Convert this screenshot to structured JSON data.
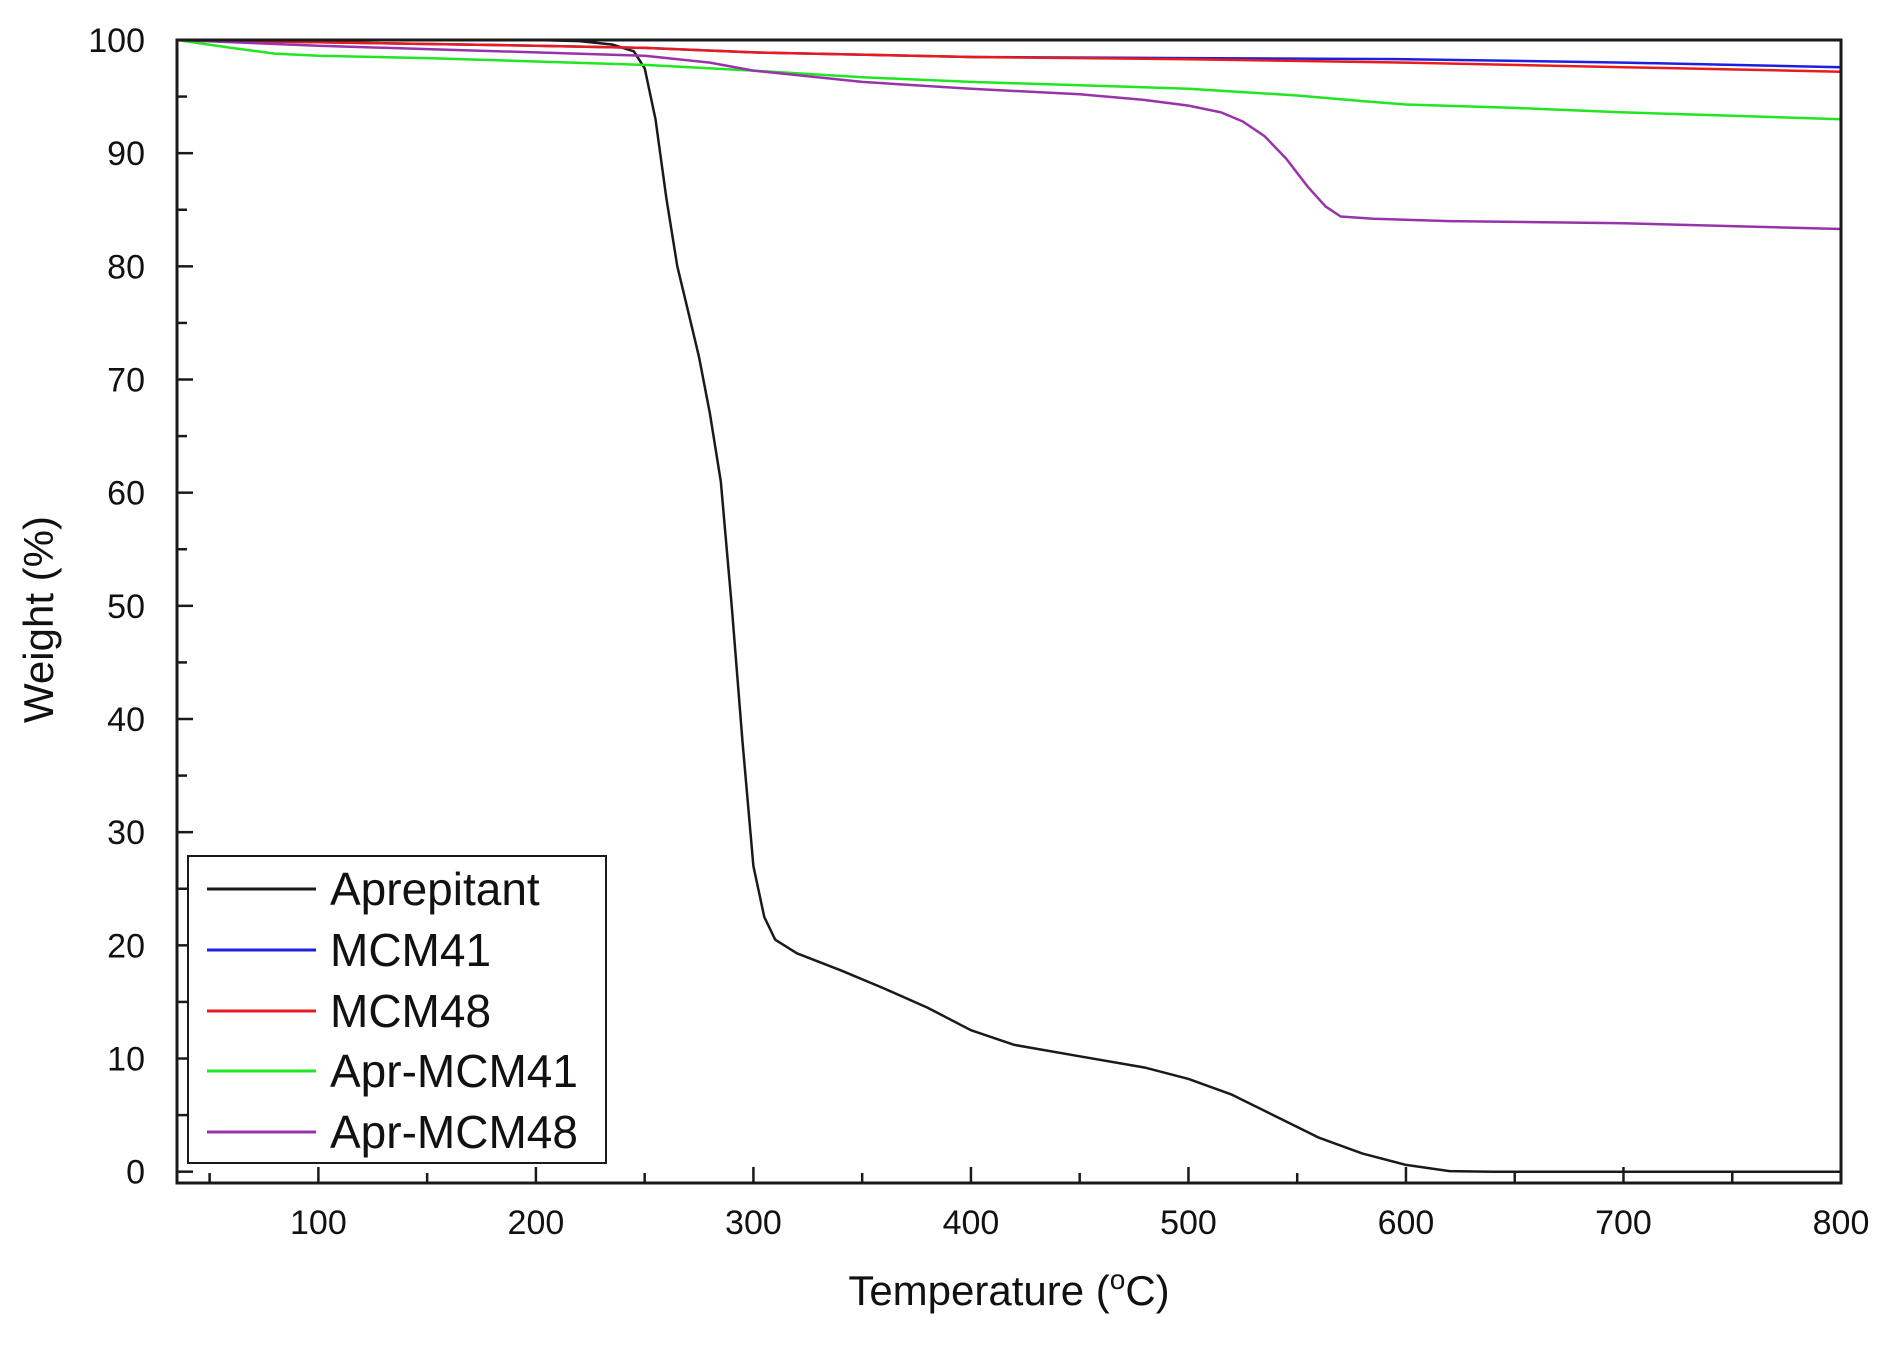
{
  "chart_data": {
    "type": "line",
    "title": "",
    "xlabel": "Temperature (",
    "xlabel_sup": "o",
    "xlabel_tail": "C)",
    "ylabel": "Weight (%)",
    "xlim": [
      35,
      800
    ],
    "ylim": [
      -1,
      100
    ],
    "xticks": [
      100,
      200,
      300,
      400,
      500,
      600,
      700,
      800
    ],
    "yticks": [
      0,
      10,
      20,
      30,
      40,
      50,
      60,
      70,
      80,
      90,
      100
    ],
    "grid": false,
    "legend_position": "bottom-left",
    "series": [
      {
        "name": "Aprepitant",
        "color": "#1a1a1a",
        "points": [
          [
            35,
            100
          ],
          [
            100,
            100
          ],
          [
            150,
            100
          ],
          [
            200,
            100
          ],
          [
            220,
            99.9
          ],
          [
            235,
            99.6
          ],
          [
            245,
            99.0
          ],
          [
            250,
            97.5
          ],
          [
            255,
            93
          ],
          [
            260,
            86
          ],
          [
            265,
            80
          ],
          [
            270,
            76
          ],
          [
            275,
            72
          ],
          [
            280,
            67
          ],
          [
            285,
            61
          ],
          [
            290,
            50
          ],
          [
            295,
            38
          ],
          [
            300,
            27
          ],
          [
            305,
            22.5
          ],
          [
            310,
            20.5
          ],
          [
            320,
            19.3
          ],
          [
            340,
            17.8
          ],
          [
            360,
            16.2
          ],
          [
            380,
            14.5
          ],
          [
            400,
            12.5
          ],
          [
            420,
            11.2
          ],
          [
            450,
            10.2
          ],
          [
            480,
            9.2
          ],
          [
            500,
            8.2
          ],
          [
            520,
            6.8
          ],
          [
            540,
            4.9
          ],
          [
            560,
            3.0
          ],
          [
            580,
            1.6
          ],
          [
            600,
            0.6
          ],
          [
            620,
            0.05
          ],
          [
            640,
            0
          ],
          [
            700,
            0
          ],
          [
            800,
            0
          ]
        ]
      },
      {
        "name": "MCM41",
        "color": "#1f1fe0",
        "points": [
          [
            35,
            100
          ],
          [
            100,
            99.8
          ],
          [
            200,
            99.5
          ],
          [
            250,
            99.3
          ],
          [
            300,
            98.9
          ],
          [
            400,
            98.5
          ],
          [
            500,
            98.4
          ],
          [
            600,
            98.3
          ],
          [
            700,
            98.0
          ],
          [
            800,
            97.6
          ]
        ]
      },
      {
        "name": "MCM48",
        "color": "#e81c1c",
        "points": [
          [
            35,
            100
          ],
          [
            100,
            99.8
          ],
          [
            200,
            99.5
          ],
          [
            250,
            99.3
          ],
          [
            300,
            98.9
          ],
          [
            400,
            98.5
          ],
          [
            500,
            98.3
          ],
          [
            600,
            98.0
          ],
          [
            700,
            97.6
          ],
          [
            800,
            97.2
          ]
        ]
      },
      {
        "name": "Apr-MCM41",
        "color": "#22e622",
        "points": [
          [
            35,
            100
          ],
          [
            60,
            99.3
          ],
          [
            80,
            98.8
          ],
          [
            100,
            98.6
          ],
          [
            150,
            98.4
          ],
          [
            200,
            98.1
          ],
          [
            250,
            97.8
          ],
          [
            300,
            97.3
          ],
          [
            350,
            96.7
          ],
          [
            400,
            96.3
          ],
          [
            450,
            96.0
          ],
          [
            500,
            95.7
          ],
          [
            550,
            95.1
          ],
          [
            580,
            94.6
          ],
          [
            600,
            94.3
          ],
          [
            650,
            94.0
          ],
          [
            700,
            93.6
          ],
          [
            750,
            93.3
          ],
          [
            800,
            93.0
          ]
        ]
      },
      {
        "name": "Apr-MCM48",
        "color": "#9933aa",
        "points": [
          [
            35,
            100
          ],
          [
            100,
            99.5
          ],
          [
            150,
            99.2
          ],
          [
            200,
            98.9
          ],
          [
            250,
            98.6
          ],
          [
            280,
            98.0
          ],
          [
            300,
            97.3
          ],
          [
            350,
            96.3
          ],
          [
            400,
            95.7
          ],
          [
            450,
            95.2
          ],
          [
            480,
            94.7
          ],
          [
            500,
            94.2
          ],
          [
            515,
            93.6
          ],
          [
            525,
            92.8
          ],
          [
            535,
            91.5
          ],
          [
            545,
            89.5
          ],
          [
            555,
            87.0
          ],
          [
            563,
            85.3
          ],
          [
            570,
            84.4
          ],
          [
            585,
            84.2
          ],
          [
            620,
            84.0
          ],
          [
            700,
            83.8
          ],
          [
            800,
            83.3
          ]
        ]
      }
    ]
  }
}
